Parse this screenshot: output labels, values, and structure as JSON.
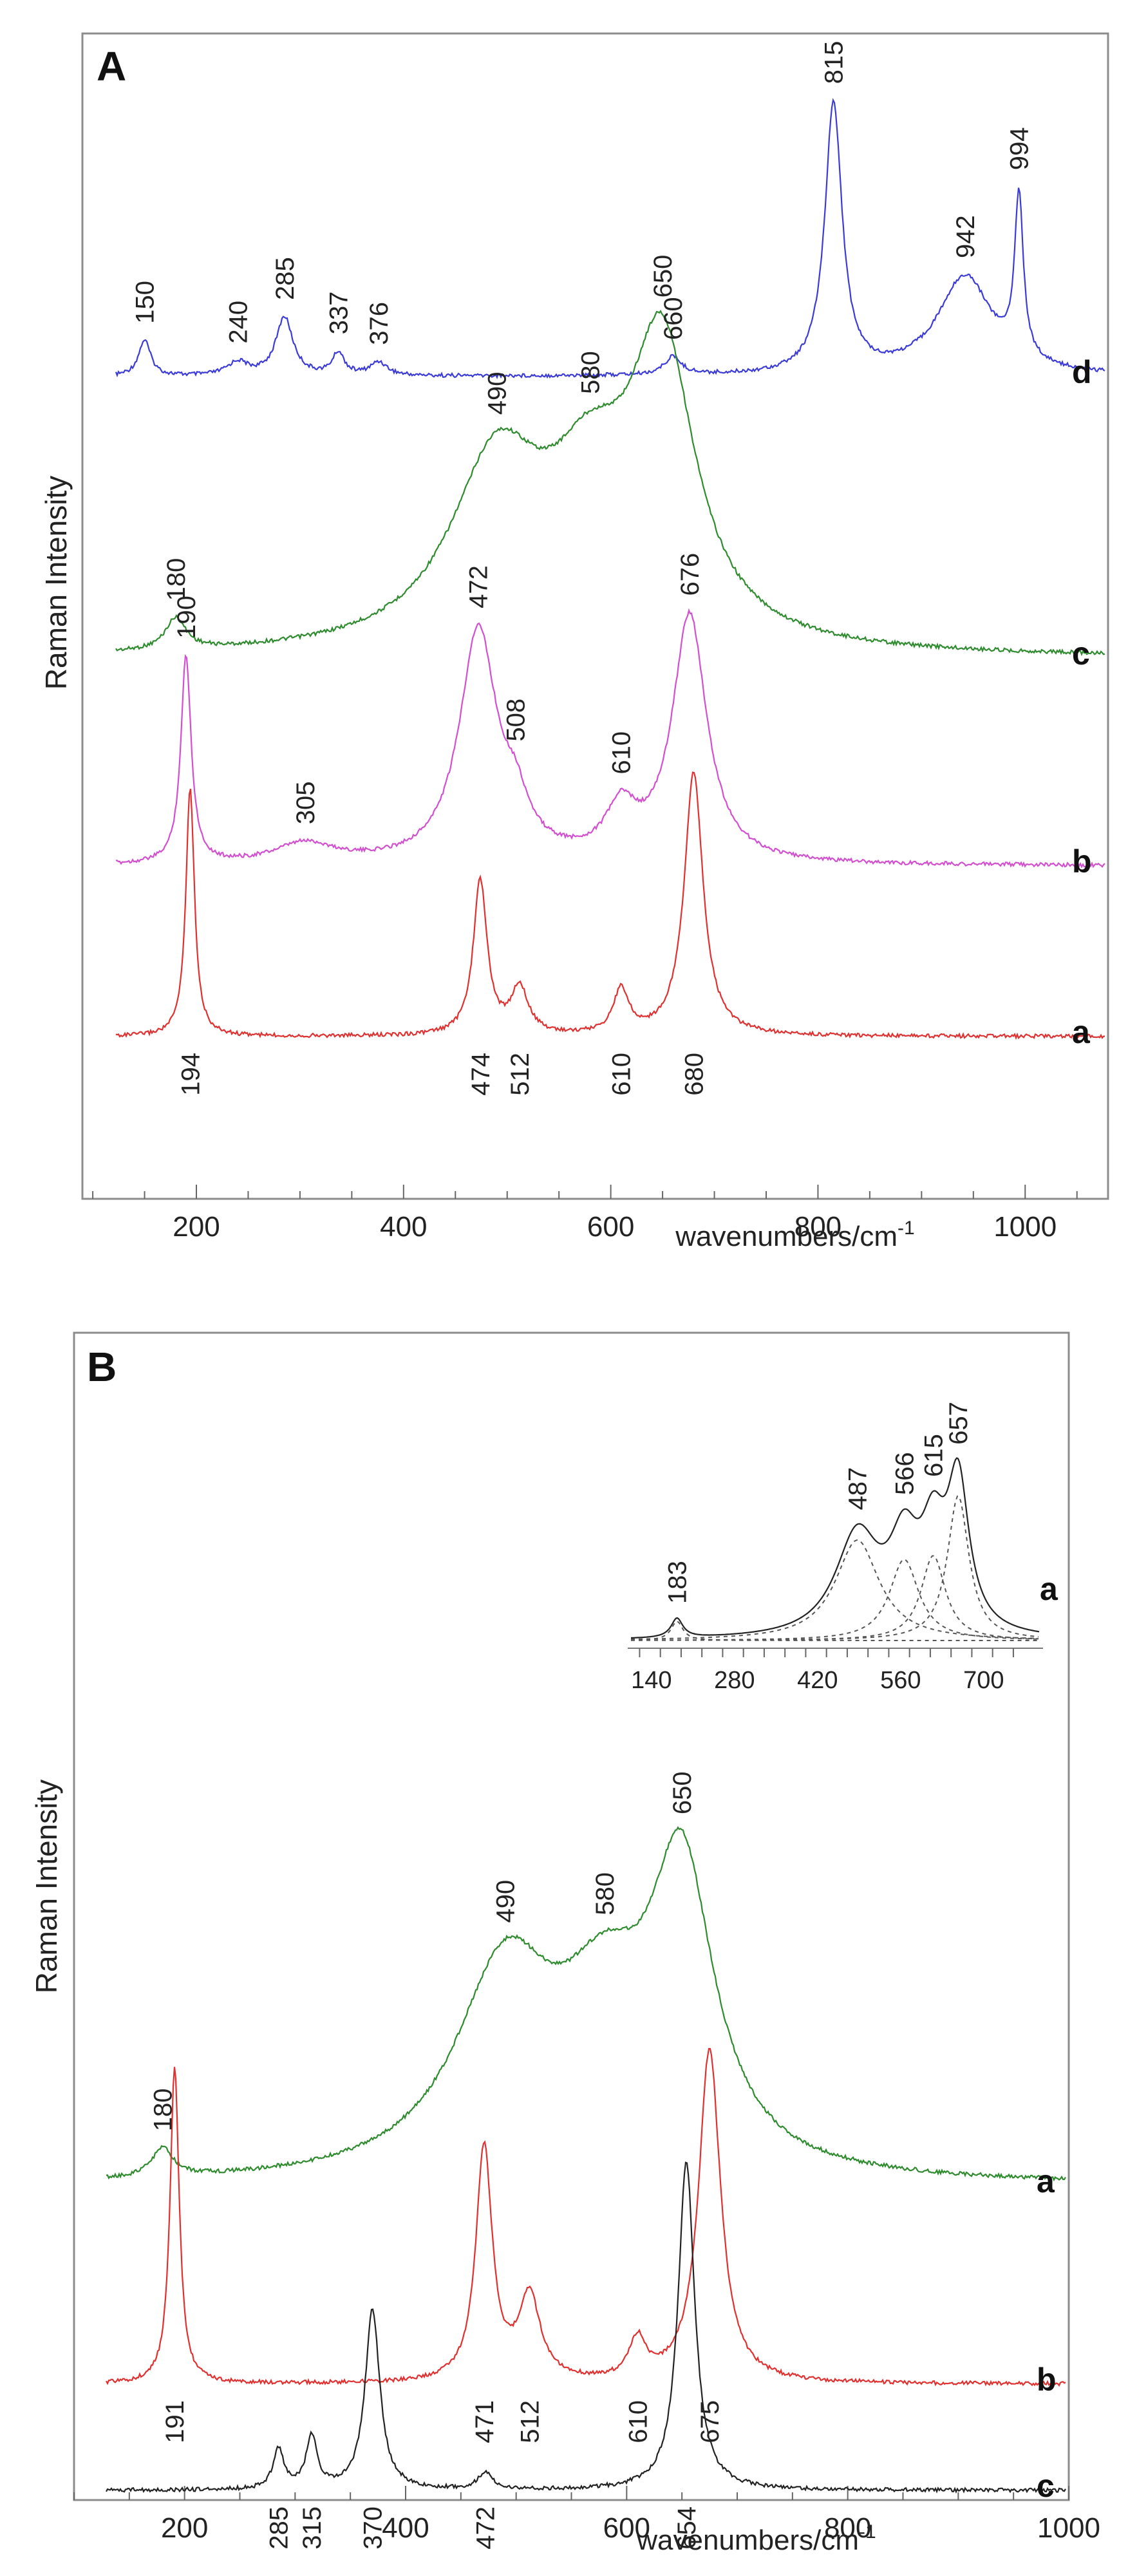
{
  "chart_data": [
    {
      "panel": "A",
      "type": "line",
      "xlabel": "wavenumbers/cm",
      "xlabel_sup": "-1",
      "ylabel": "Raman Intensity",
      "xlim": [
        90,
        1080
      ],
      "xticks": [
        200,
        400,
        600,
        800,
        1000
      ],
      "series": [
        {
          "name": "d",
          "color": "#3b3bd9",
          "peaks": [
            {
              "x": 150,
              "h": 0.08,
              "w": 7,
              "label": "150"
            },
            {
              "x": 240,
              "h": 0.03,
              "w": 12,
              "label": "240"
            },
            {
              "x": 285,
              "h": 0.13,
              "w": 10,
              "label": "285"
            },
            {
              "x": 337,
              "h": 0.05,
              "w": 7,
              "label": "337"
            },
            {
              "x": 376,
              "h": 0.03,
              "w": 10,
              "label": "376"
            },
            {
              "x": 660,
              "h": 0.04,
              "w": 10,
              "label": "660"
            },
            {
              "x": 815,
              "h": 0.6,
              "w": 10,
              "label": "815"
            },
            {
              "x": 942,
              "h": 0.22,
              "w": 32,
              "label": "942"
            },
            {
              "x": 994,
              "h": 0.36,
              "w": 5,
              "label": "994"
            }
          ],
          "baseline": 0.0
        },
        {
          "name": "c",
          "color": "#2e8b2e",
          "peaks": [
            {
              "x": 180,
              "h": 0.07,
              "w": 12,
              "label": "180"
            },
            {
              "x": 490,
              "h": 0.4,
              "w": 55,
              "label": "490"
            },
            {
              "x": 580,
              "h": 0.3,
              "w": 50,
              "label": "580"
            },
            {
              "x": 650,
              "h": 0.62,
              "w": 38,
              "label": "650"
            }
          ],
          "baseline": 0.0
        },
        {
          "name": "b",
          "color": "#d24fd0",
          "peaks": [
            {
              "x": 190,
              "h": 0.52,
              "w": 6,
              "label": "190"
            },
            {
              "x": 305,
              "h": 0.05,
              "w": 35,
              "label": "305"
            },
            {
              "x": 472,
              "h": 0.58,
              "w": 22,
              "label": "472"
            },
            {
              "x": 508,
              "h": 0.1,
              "w": 15,
              "label": "508"
            },
            {
              "x": 610,
              "h": 0.12,
              "w": 18,
              "label": "610"
            },
            {
              "x": 676,
              "h": 0.62,
              "w": 20,
              "label": "676"
            }
          ],
          "baseline": 0.0
        },
        {
          "name": "a",
          "color": "#e03030",
          "peaks": [
            {
              "x": 194,
              "h": 0.9,
              "w": 5,
              "label": "194"
            },
            {
              "x": 474,
              "h": 0.56,
              "w": 8,
              "label": "474"
            },
            {
              "x": 512,
              "h": 0.17,
              "w": 10,
              "label": "512"
            },
            {
              "x": 610,
              "h": 0.16,
              "w": 9,
              "label": "610"
            },
            {
              "x": 680,
              "h": 0.95,
              "w": 11,
              "label": "680"
            }
          ],
          "baseline": 0.0
        }
      ]
    },
    {
      "panel": "B",
      "type": "line",
      "xlabel": "wavenumbers/cm",
      "xlabel_sup": "-1",
      "ylabel": "Raman Intensity",
      "xlim": [
        100,
        1000
      ],
      "xticks": [
        200,
        400,
        600,
        800,
        1000
      ],
      "series": [
        {
          "name": "a",
          "color": "#2e8b2e",
          "peaks": [
            {
              "x": 180,
              "h": 0.06,
              "w": 12,
              "label": "180"
            },
            {
              "x": 490,
              "h": 0.42,
              "w": 55,
              "label": "490"
            },
            {
              "x": 580,
              "h": 0.3,
              "w": 50,
              "label": "580"
            },
            {
              "x": 650,
              "h": 0.6,
              "w": 35,
              "label": "650"
            }
          ],
          "baseline": 0.0
        },
        {
          "name": "b",
          "color": "#e03030",
          "peaks": [
            {
              "x": 191,
              "h": 0.95,
              "w": 5,
              "label": "191"
            },
            {
              "x": 471,
              "h": 0.7,
              "w": 9,
              "label": "471"
            },
            {
              "x": 512,
              "h": 0.25,
              "w": 12,
              "label": "512"
            },
            {
              "x": 610,
              "h": 0.12,
              "w": 9,
              "label": "610"
            },
            {
              "x": 675,
              "h": 1.0,
              "w": 12,
              "label": "675"
            }
          ],
          "baseline": 0.0
        },
        {
          "name": "c",
          "color": "#222222",
          "peaks": [
            {
              "x": 285,
              "h": 0.12,
              "w": 6,
              "label": "285"
            },
            {
              "x": 315,
              "h": 0.16,
              "w": 6,
              "label": "315"
            },
            {
              "x": 370,
              "h": 0.55,
              "w": 8,
              "label": "370"
            },
            {
              "x": 472,
              "h": 0.05,
              "w": 8,
              "label": "472"
            },
            {
              "x": 654,
              "h": 1.0,
              "w": 9,
              "label": "654"
            }
          ],
          "baseline": 0.0
        }
      ],
      "inset": {
        "series_name": "a",
        "xlim": [
          100,
          800
        ],
        "xticks": [
          140,
          280,
          420,
          560,
          700
        ],
        "peaks": [
          {
            "x": 183,
            "h": 0.1,
            "w": 12,
            "label": "183"
          },
          {
            "x": 487,
            "h": 0.52,
            "w": 45,
            "label": "487"
          },
          {
            "x": 566,
            "h": 0.42,
            "w": 30,
            "label": "566"
          },
          {
            "x": 615,
            "h": 0.44,
            "w": 25,
            "label": "615"
          },
          {
            "x": 657,
            "h": 0.75,
            "w": 22,
            "label": "657"
          }
        ]
      }
    }
  ]
}
